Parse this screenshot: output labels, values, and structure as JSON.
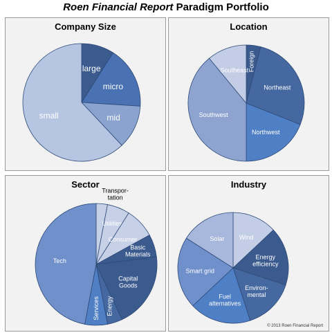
{
  "page_title": {
    "brand": "Roen Financial Report",
    "rest": "Paradigm Portfolio"
  },
  "copyright": "© 2013 Roen Financial Report",
  "chart_data": [
    {
      "type": "pie",
      "title": "Company Size",
      "slices": [
        {
          "label": "large",
          "value": 9,
          "color": "#3b5a8e",
          "text_color": "#ffffff"
        },
        {
          "label": "micro",
          "value": 17,
          "color": "#4a72b2",
          "text_color": "#ffffff"
        },
        {
          "label": "mid",
          "value": 12,
          "color": "#8aa3cf",
          "text_color": "#ffffff"
        },
        {
          "label": "small",
          "value": 62,
          "color": "#b6c5e1",
          "text_color": "#ffffff"
        }
      ]
    },
    {
      "type": "pie",
      "title": "Location",
      "slices": [
        {
          "label": "Foreign",
          "value": 4,
          "color": "#3b5a8e",
          "text_color": "#ffffff",
          "rotate": true
        },
        {
          "label": "Northeast",
          "value": 27,
          "color": "#44689f",
          "text_color": "#ffffff"
        },
        {
          "label": "Northwest",
          "value": 19,
          "color": "#4f7fc4",
          "text_color": "#ffffff"
        },
        {
          "label": "Southwest",
          "value": 39,
          "color": "#8ea3d0",
          "text_color": "#ffffff"
        },
        {
          "label": "Southeast",
          "value": 11,
          "color": "#c3cee6",
          "text_color": "#ffffff"
        }
      ]
    },
    {
      "type": "pie",
      "title": "Sector",
      "slices": [
        {
          "label": "Transportation",
          "display": "Transpor-\ntation",
          "value": 3,
          "color": "#c6d0e7",
          "text_color": "#000000",
          "outside": true
        },
        {
          "label": "Utilities",
          "value": 6,
          "color": "#c6d0e7",
          "text_color": "#ffffff"
        },
        {
          "label": "Consumer",
          "value": 8,
          "color": "#c6d0e7",
          "text_color": "#ffffff"
        },
        {
          "label": "Basic Materials",
          "display": "Basic\nMaterials",
          "value": 6,
          "color": "#3b5a8e",
          "text_color": "#ffffff"
        },
        {
          "label": "Capital Goods",
          "display": "Capital\nGoods",
          "value": 20,
          "color": "#3b5a8e",
          "text_color": "#ffffff"
        },
        {
          "label": "Energy",
          "value": 4,
          "color": "#44689f",
          "text_color": "#ffffff",
          "rotate": true
        },
        {
          "label": "Services",
          "value": 6,
          "color": "#4f7fc4",
          "text_color": "#ffffff",
          "rotate": true
        },
        {
          "label": "Tech",
          "value": 47,
          "color": "#7090cc",
          "text_color": "#ffffff"
        }
      ]
    },
    {
      "type": "pie",
      "title": "Industry",
      "slices": [
        {
          "label": "Wind",
          "value": 13,
          "color": "#c3cee6",
          "text_color": "#ffffff"
        },
        {
          "label": "Energy efficiency",
          "display": "Energy\nefficiency",
          "value": 17,
          "color": "#3b5a8e",
          "text_color": "#ffffff"
        },
        {
          "label": "Environmental",
          "display": "Environ-\nmental",
          "value": 15,
          "color": "#44689f",
          "text_color": "#ffffff"
        },
        {
          "label": "Fuel alternatives",
          "display": "Fuel\nalternatives",
          "value": 18,
          "color": "#4f7fc4",
          "text_color": "#ffffff"
        },
        {
          "label": "Smart grid",
          "value": 21,
          "color": "#7090cc",
          "text_color": "#ffffff"
        },
        {
          "label": "Solar",
          "value": 16,
          "color": "#a7b8dc",
          "text_color": "#ffffff"
        }
      ]
    }
  ]
}
